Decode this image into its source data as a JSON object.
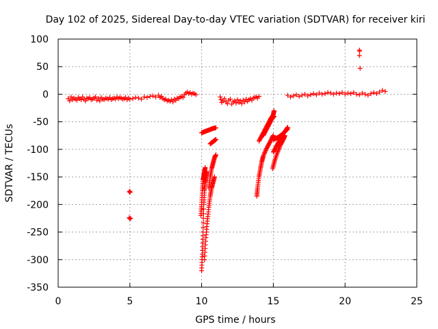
{
  "chart_data": {
    "type": "scatter",
    "title": "Day 102 of 2025, Sidereal Day-to-day VTEC variation (SDTVAR) for receiver kiri",
    "xlabel": "GPS time / hours",
    "ylabel": "SDTVAR / TECUs",
    "xlim": [
      0,
      25
    ],
    "ylim": [
      -350,
      100
    ],
    "xticks": [
      0,
      5,
      10,
      15,
      20,
      25
    ],
    "yticks": [
      100,
      50,
      0,
      -50,
      -100,
      -150,
      -200,
      -250,
      -300,
      -350
    ],
    "grid": true,
    "legend": "none",
    "marker": "+",
    "color": "#ff0000",
    "series": [
      {
        "values": [
          [
            0.7,
            -8
          ],
          [
            0.8,
            -12
          ],
          [
            0.9,
            -5
          ],
          [
            1.0,
            -10
          ],
          [
            1.1,
            -7
          ],
          [
            1.2,
            -9
          ],
          [
            1.3,
            -11
          ],
          [
            1.4,
            -6
          ],
          [
            1.5,
            -8
          ],
          [
            1.6,
            -10
          ],
          [
            1.7,
            -5
          ],
          [
            1.8,
            -9
          ],
          [
            1.9,
            -12
          ],
          [
            2.0,
            -7
          ],
          [
            2.1,
            -8
          ],
          [
            2.2,
            -6
          ],
          [
            2.3,
            -10
          ],
          [
            2.4,
            -9
          ],
          [
            2.5,
            -7
          ],
          [
            2.6,
            -5
          ],
          [
            2.7,
            -11
          ],
          [
            2.8,
            -8
          ],
          [
            2.9,
            -12
          ],
          [
            3.0,
            -6
          ],
          [
            3.1,
            -9
          ],
          [
            3.2,
            -10
          ],
          [
            3.3,
            -7
          ],
          [
            3.4,
            -8
          ],
          [
            3.5,
            -9
          ],
          [
            3.6,
            -6
          ],
          [
            3.7,
            -10
          ],
          [
            3.8,
            -8
          ],
          [
            3.9,
            -7
          ],
          [
            4.0,
            -9
          ],
          [
            4.1,
            -5
          ],
          [
            4.2,
            -8
          ],
          [
            4.3,
            -6
          ],
          [
            4.4,
            -7
          ],
          [
            4.5,
            -9
          ],
          [
            4.6,
            -8
          ],
          [
            4.7,
            -6
          ],
          [
            4.8,
            -10
          ],
          [
            4.9,
            -7
          ],
          [
            5.0,
            -9
          ],
          [
            5.2,
            -8
          ],
          [
            5.4,
            -6
          ],
          [
            5.6,
            -7
          ],
          [
            5.8,
            -9
          ],
          [
            6.0,
            -5
          ],
          [
            6.2,
            -6
          ],
          [
            6.4,
            -4
          ],
          [
            6.6,
            -3
          ],
          [
            6.8,
            -5
          ],
          [
            7.0,
            -2
          ],
          [
            7.1,
            -6
          ],
          [
            7.2,
            -4
          ],
          [
            7.3,
            -8
          ],
          [
            7.4,
            -10
          ],
          [
            7.5,
            -9
          ],
          [
            7.6,
            -12
          ],
          [
            7.7,
            -11
          ],
          [
            7.8,
            -13
          ],
          [
            7.9,
            -10
          ],
          [
            8.0,
            -14
          ],
          [
            8.1,
            -9
          ],
          [
            8.2,
            -11
          ],
          [
            8.3,
            -7
          ],
          [
            8.4,
            -8
          ],
          [
            8.5,
            -5
          ],
          [
            8.6,
            -4
          ],
          [
            8.7,
            -6
          ],
          [
            8.8,
            -1
          ],
          [
            8.9,
            2
          ],
          [
            9.0,
            4
          ],
          [
            9.1,
            1
          ],
          [
            9.2,
            3
          ],
          [
            9.3,
            0
          ],
          [
            9.4,
            2
          ],
          [
            9.5,
            1
          ],
          [
            9.6,
            -1
          ],
          [
            4.95,
            -177
          ],
          [
            5.0,
            -176
          ],
          [
            5.02,
            -178
          ],
          [
            4.95,
            -224
          ],
          [
            5.0,
            -226
          ],
          [
            5.05,
            -225
          ],
          [
            11.3,
            -5
          ],
          [
            11.35,
            -10
          ],
          [
            11.4,
            -15
          ],
          [
            11.5,
            -12
          ],
          [
            11.6,
            -8
          ],
          [
            11.7,
            -14
          ],
          [
            11.8,
            -17
          ],
          [
            11.9,
            -11
          ],
          [
            12.0,
            -9
          ],
          [
            12.1,
            -18
          ],
          [
            12.2,
            -14
          ],
          [
            12.3,
            -12
          ],
          [
            12.4,
            -16
          ],
          [
            12.5,
            -10
          ],
          [
            12.6,
            -15
          ],
          [
            12.7,
            -12
          ],
          [
            12.8,
            -17
          ],
          [
            12.9,
            -11
          ],
          [
            13.0,
            -14
          ],
          [
            13.1,
            -9
          ],
          [
            13.2,
            -13
          ],
          [
            13.3,
            -10
          ],
          [
            13.4,
            -8
          ],
          [
            13.5,
            -11
          ],
          [
            13.6,
            -7
          ],
          [
            13.7,
            -6
          ],
          [
            13.8,
            -5
          ],
          [
            13.9,
            -7
          ],
          [
            14.0,
            -4
          ],
          [
            16.0,
            -2
          ],
          [
            16.2,
            -5
          ],
          [
            16.4,
            -3
          ],
          [
            16.6,
            -1
          ],
          [
            16.8,
            -4
          ],
          [
            17.0,
            -2
          ],
          [
            17.2,
            0
          ],
          [
            17.4,
            -3
          ],
          [
            17.6,
            -1
          ],
          [
            17.8,
            1
          ],
          [
            18.0,
            -1
          ],
          [
            18.2,
            2
          ],
          [
            18.4,
            0
          ],
          [
            18.6,
            1
          ],
          [
            18.8,
            3
          ],
          [
            19.0,
            2
          ],
          [
            19.2,
            0
          ],
          [
            19.4,
            2
          ],
          [
            19.6,
            1
          ],
          [
            19.8,
            3
          ],
          [
            20.0,
            0
          ],
          [
            20.2,
            2
          ],
          [
            20.4,
            1
          ],
          [
            20.6,
            3
          ],
          [
            20.8,
            0
          ],
          [
            21.0,
            -1
          ],
          [
            21.2,
            2
          ],
          [
            21.4,
            0
          ],
          [
            21.6,
            -2
          ],
          [
            21.8,
            1
          ],
          [
            22.0,
            3
          ],
          [
            22.2,
            1
          ],
          [
            22.4,
            4
          ],
          [
            22.6,
            7
          ],
          [
            22.8,
            5
          ],
          [
            21.0,
            80
          ],
          [
            21.02,
            78
          ],
          [
            21.0,
            70
          ],
          [
            21.05,
            47
          ]
        ]
      }
    ],
    "curves": [
      [
        [
          10.0,
          -320
        ],
        [
          10.05,
          -290
        ],
        [
          10.1,
          -250
        ],
        [
          10.15,
          -200
        ],
        [
          10.2,
          -175
        ],
        [
          10.25,
          -160
        ],
        [
          10.3,
          -150
        ],
        [
          10.35,
          -140
        ]
      ],
      [
        [
          9.95,
          -220
        ],
        [
          10.0,
          -200
        ],
        [
          10.05,
          -175
        ],
        [
          10.1,
          -155
        ],
        [
          10.15,
          -148
        ],
        [
          10.2,
          -140
        ],
        [
          10.25,
          -133
        ]
      ],
      [
        [
          10.2,
          -300
        ],
        [
          10.3,
          -260
        ],
        [
          10.4,
          -230
        ],
        [
          10.5,
          -205
        ],
        [
          10.6,
          -185
        ],
        [
          10.7,
          -170
        ],
        [
          10.8,
          -160
        ],
        [
          10.9,
          -150
        ]
      ],
      [
        [
          10.5,
          -170
        ],
        [
          10.6,
          -150
        ],
        [
          10.7,
          -135
        ],
        [
          10.8,
          -125
        ],
        [
          10.9,
          -115
        ],
        [
          11.0,
          -110
        ]
      ],
      [
        [
          10.0,
          -70
        ],
        [
          10.2,
          -68
        ],
        [
          10.4,
          -66
        ],
        [
          10.6,
          -64
        ],
        [
          10.8,
          -62
        ],
        [
          11.0,
          -61
        ]
      ],
      [
        [
          10.6,
          -90
        ],
        [
          10.7,
          -88
        ],
        [
          10.8,
          -86
        ],
        [
          10.9,
          -84
        ],
        [
          11.0,
          -82
        ]
      ],
      [
        [
          13.85,
          -185
        ],
        [
          13.9,
          -170
        ],
        [
          14.0,
          -150
        ],
        [
          14.1,
          -135
        ],
        [
          14.2,
          -122
        ],
        [
          14.3,
          -112
        ],
        [
          14.5,
          -100
        ],
        [
          14.7,
          -90
        ],
        [
          14.9,
          -80
        ],
        [
          15.0,
          -75
        ]
      ],
      [
        [
          14.0,
          -85
        ],
        [
          14.2,
          -75
        ],
        [
          14.4,
          -65
        ],
        [
          14.6,
          -55
        ],
        [
          14.8,
          -45
        ],
        [
          15.0,
          -37
        ],
        [
          15.05,
          -30
        ]
      ],
      [
        [
          14.3,
          -75
        ],
        [
          14.5,
          -65
        ],
        [
          14.7,
          -55
        ],
        [
          14.9,
          -45
        ],
        [
          15.05,
          -40
        ]
      ],
      [
        [
          14.95,
          -135
        ],
        [
          15.1,
          -120
        ],
        [
          15.3,
          -105
        ],
        [
          15.5,
          -92
        ],
        [
          15.7,
          -82
        ],
        [
          15.8,
          -75
        ]
      ],
      [
        [
          15.0,
          -105
        ],
        [
          15.2,
          -95
        ],
        [
          15.4,
          -85
        ],
        [
          15.6,
          -75
        ],
        [
          15.8,
          -68
        ],
        [
          16.0,
          -63
        ]
      ],
      [
        [
          15.0,
          -82
        ],
        [
          15.2,
          -80
        ],
        [
          15.4,
          -77
        ],
        [
          15.6,
          -73
        ],
        [
          15.8,
          -68
        ],
        [
          16.0,
          -60
        ]
      ]
    ]
  }
}
